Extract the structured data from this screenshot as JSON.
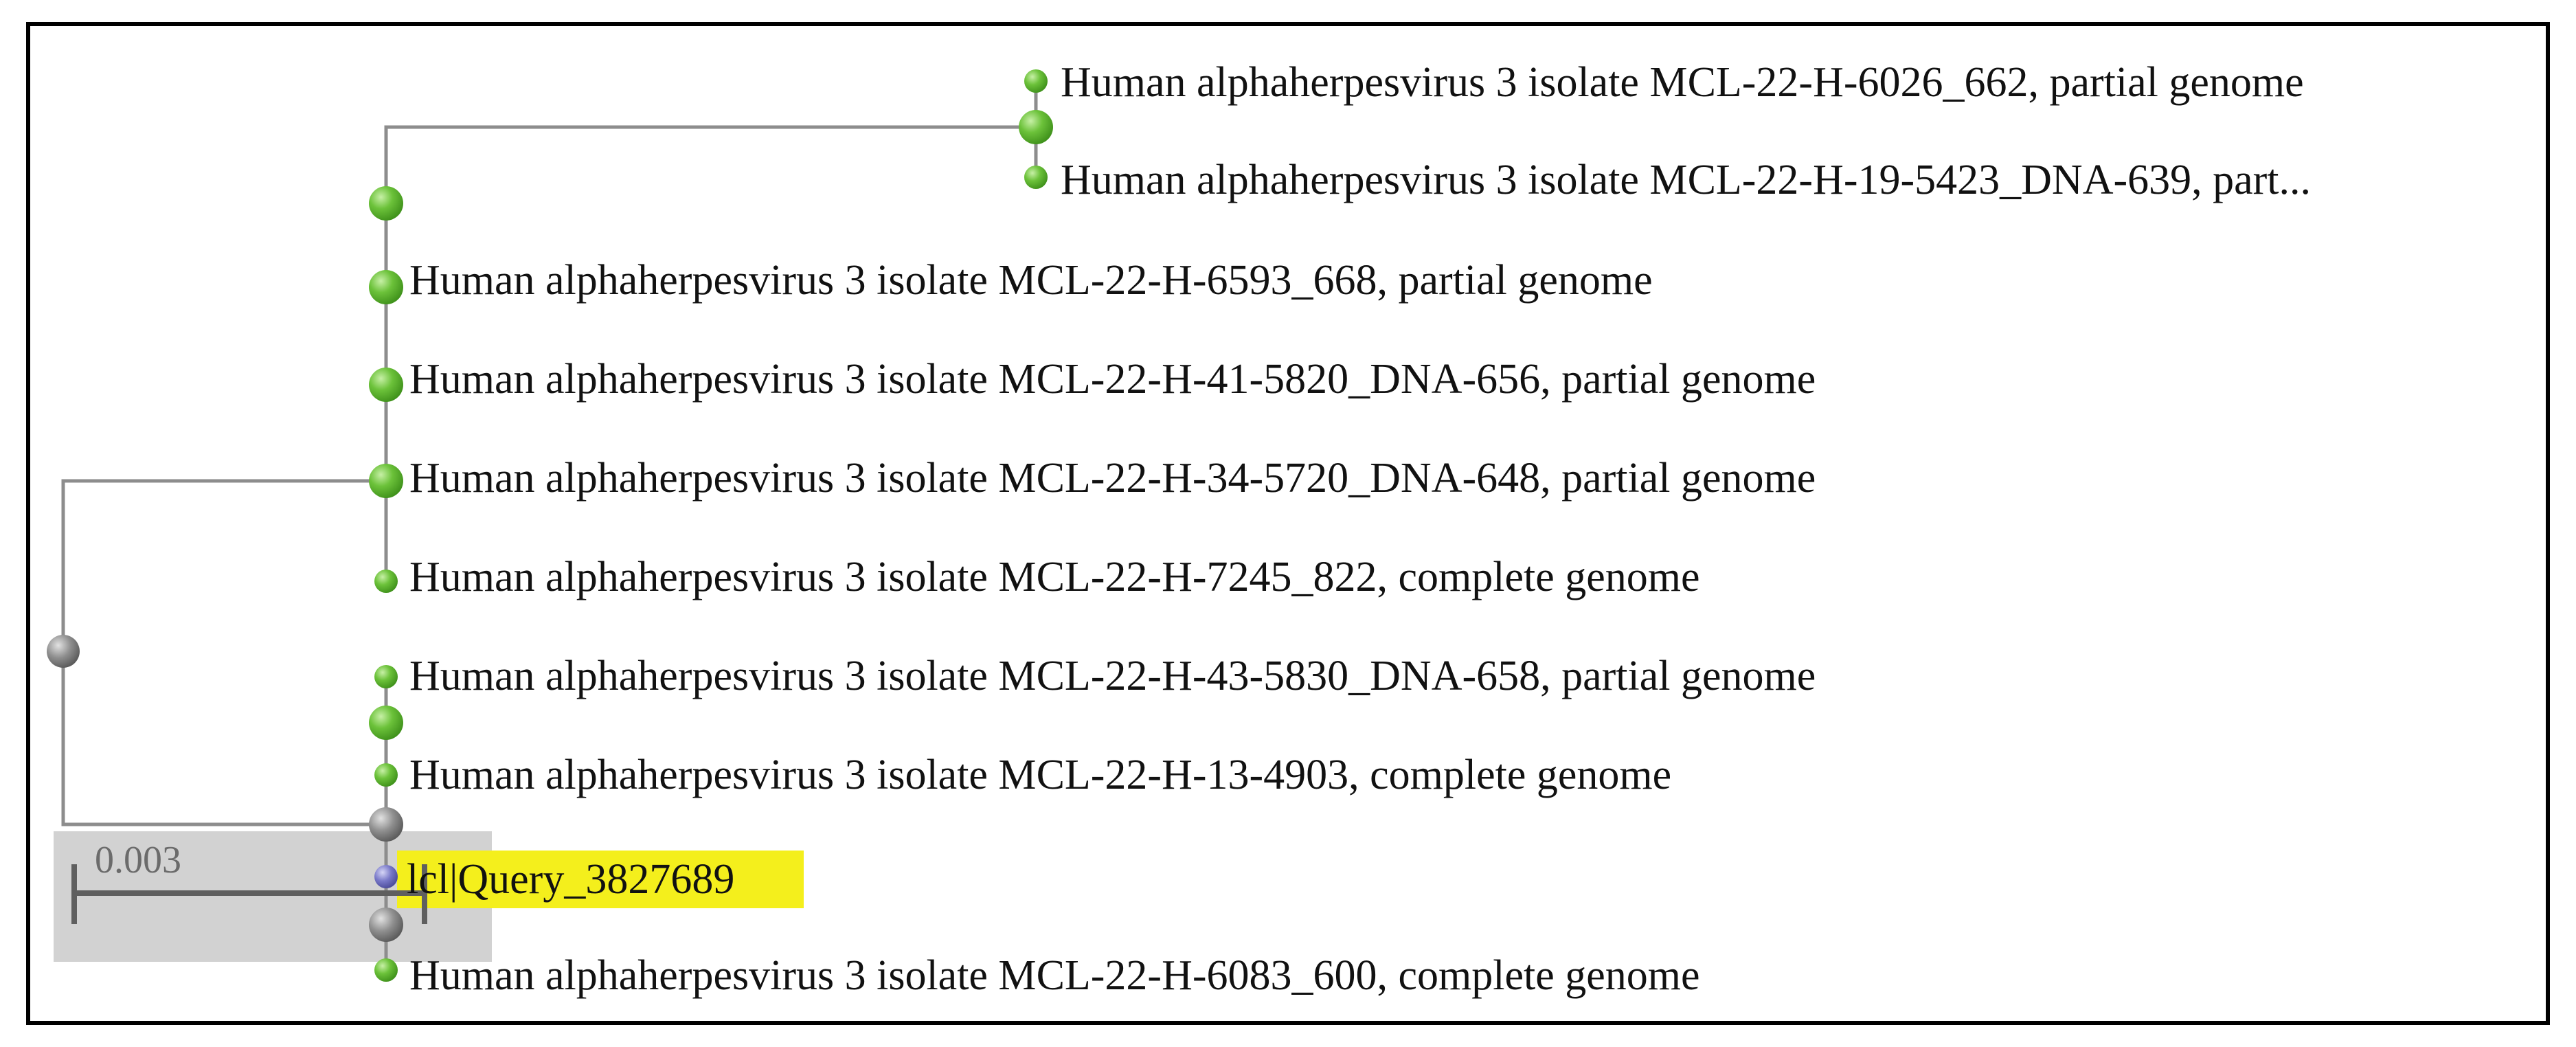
{
  "tree": {
    "leaves": [
      "Human alphaherpesvirus 3 isolate MCL-22-H-6026_662, partial genome",
      "Human alphaherpesvirus 3 isolate MCL-22-H-19-5423_DNA-639, part...",
      "Human alphaherpesvirus 3 isolate MCL-22-H-6593_668, partial genome",
      "Human alphaherpesvirus 3 isolate MCL-22-H-41-5820_DNA-656, partial genome",
      "Human alphaherpesvirus 3 isolate MCL-22-H-34-5720_DNA-648, partial genome",
      "Human alphaherpesvirus 3 isolate MCL-22-H-7245_822, complete genome",
      "Human alphaherpesvirus 3 isolate MCL-22-H-43-5830_DNA-658, partial genome",
      "Human alphaherpesvirus 3 isolate MCL-22-H-13-4903, complete genome",
      "Human alphaherpesvirus 3 isolate MCL-22-H-6083_600, complete genome"
    ],
    "query_label": "lcl|Query_3827689",
    "scale_label": "0.003"
  },
  "colors": {
    "branch": "#8d8d8d",
    "leaf_node": "#6cc23a",
    "internal_node": "#7a7a7a",
    "query_node": "#7878c8",
    "query_highlight": "#f4ef1c",
    "scale_box": "#d2d2d2"
  }
}
